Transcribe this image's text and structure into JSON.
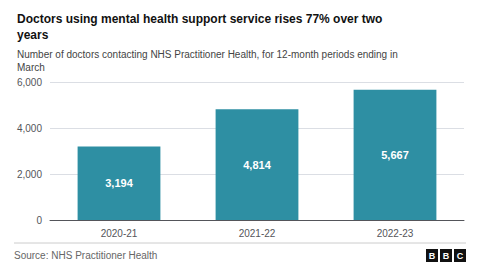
{
  "chart_data": {
    "type": "bar",
    "title": "Doctors using mental health support service rises 77% over two\nyears",
    "subtitle": "Number of doctors contacting NHS Practitioner Health, for 12-month periods ending in\nMarch",
    "annotations": [
      "Source: NHS Practitioner Health",
      "BBC"
    ],
    "categories": [
      "2020-21",
      "2021-22",
      "2022-23"
    ],
    "values": [
      3194,
      4814,
      5667
    ],
    "value_labels": [
      "3,194",
      "4,814",
      "5,667"
    ],
    "data_labels": true,
    "color": "#2e8fa3",
    "ylim": [
      0,
      6000
    ],
    "yticks": [
      0,
      {
        "value": 2000,
        "label": "2,000"
      },
      {
        "value": 4000,
        "label": "4,000"
      },
      {
        "value": 6000,
        "label": "6,000"
      }
    ],
    "grid": true
  }
}
